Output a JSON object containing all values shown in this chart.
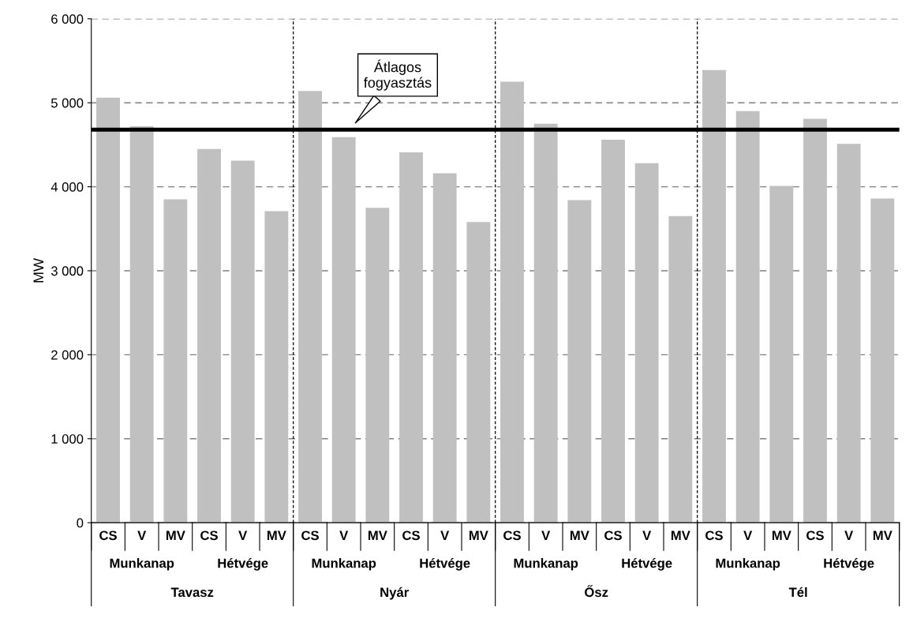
{
  "chart_data": {
    "type": "bar",
    "ylabel": "MW",
    "categories": [
      "CS",
      "V",
      "MV",
      "CS",
      "V",
      "MV",
      "CS",
      "V",
      "MV",
      "CS",
      "V",
      "MV",
      "CS",
      "V",
      "MV",
      "CS",
      "V",
      "MV",
      "CS",
      "V",
      "MV",
      "CS",
      "V",
      "MV"
    ],
    "values": [
      5060,
      4720,
      3850,
      4450,
      4310,
      3710,
      5140,
      4590,
      3750,
      4410,
      4160,
      3580,
      5250,
      4750,
      3840,
      4560,
      4280,
      3650,
      5390,
      4900,
      4010,
      4810,
      4510,
      3860
    ],
    "color": "#c0c0c0",
    "ylim": [
      0,
      6000
    ],
    "yticks": [
      {
        "value": 0,
        "label": "0"
      },
      {
        "value": 1000,
        "label": "1 000"
      },
      {
        "value": 2000,
        "label": "2 000"
      },
      {
        "value": 3000,
        "label": "3 000"
      },
      {
        "value": 4000,
        "label": "4 000"
      },
      {
        "value": 5000,
        "label": "5 000"
      },
      {
        "value": 6000,
        "label": "6 000"
      }
    ],
    "grid": "y",
    "ref_lines": [
      {
        "axis": "y",
        "value": 4680,
        "label": "Átlagos\nfogyasztás",
        "color": "#000000"
      }
    ],
    "annotations": [
      "Munkanap",
      "Hétvége",
      "Munkanap",
      "Hétvége",
      "Munkanap",
      "Hétvége",
      "Munkanap",
      "Hétvége",
      "Tavasz",
      "Nyár",
      "Ősz",
      "Tél"
    ]
  }
}
